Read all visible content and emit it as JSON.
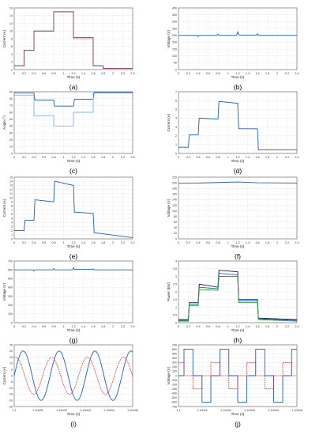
{
  "colors": {
    "blue": "#1f5fbf",
    "navy": "#0d1b4f",
    "red": "#e0251b",
    "green": "#2e9e2e",
    "grid": "#d0d0d0",
    "axis": "#555555"
  },
  "chart_data": [
    {
      "id": "a",
      "type": "line",
      "caption": "(a)",
      "xlabel": "Time (s)",
      "ylabel": "Current (A)",
      "xlim": [
        0,
        2.4
      ],
      "ylim": [
        0,
        16
      ],
      "grid": true,
      "xticks": [
        "0",
        "0.2",
        "0.4",
        "0.6",
        "0.8",
        "1",
        "1.2",
        "1.4",
        "1.6",
        "1.8",
        "2",
        "2.2",
        "2.4"
      ],
      "yticks": [
        "0",
        "2",
        "4",
        "6",
        "8",
        "10",
        "12",
        "14",
        "16"
      ],
      "series": [
        {
          "color": "blue",
          "x": [
            0,
            0.2,
            0.2,
            0.4,
            0.4,
            0.8,
            0.8,
            1.2,
            1.2,
            1.6,
            1.6,
            1.8,
            1.8,
            2.4
          ],
          "y": [
            1,
            1,
            5,
            5,
            10,
            10,
            15,
            15,
            8.3,
            8.3,
            1,
            1,
            0.3,
            0.3
          ]
        },
        {
          "color": "red",
          "dashed": true,
          "x": [
            0,
            0.2,
            0.2,
            0.4,
            0.4,
            0.8,
            0.8,
            1.2,
            1.2,
            1.6,
            1.6,
            1.8,
            1.8,
            2.4
          ],
          "y": [
            1,
            1,
            5,
            5,
            10,
            10,
            15,
            15,
            8,
            8,
            1,
            1,
            0.3,
            0.3
          ]
        }
      ]
    },
    {
      "id": "b",
      "type": "line",
      "caption": "(b)",
      "xlabel": "Time (s)",
      "ylabel": "Voltage (V)",
      "xlim": [
        0,
        2.4
      ],
      "ylim": [
        0,
        450
      ],
      "grid": true,
      "xticks": [
        "0",
        "0.2",
        "0.4",
        "0.6",
        "0.8",
        "1",
        "1.2",
        "1.4",
        "1.6",
        "1.8",
        "2",
        "2.2",
        "2.4"
      ],
      "yticks": [
        "0",
        "50",
        "100",
        "150",
        "200",
        "250",
        "300",
        "350",
        "400",
        "450"
      ],
      "series": [
        {
          "color": "blue",
          "x": [
            0,
            0.38,
            0.4,
            0.42,
            0.78,
            0.8,
            0.82,
            1.18,
            1.2,
            1.23,
            1.58,
            1.6,
            1.62,
            2.4
          ],
          "y": [
            250,
            250,
            240,
            250,
            250,
            258,
            250,
            250,
            275,
            252,
            252,
            262,
            250,
            250
          ]
        }
      ]
    },
    {
      "id": "c",
      "type": "line",
      "caption": "(c)",
      "xlabel": "Time (s)",
      "ylabel": "Angle (°)",
      "xlim": [
        0,
        2.4
      ],
      "ylim": [
        0,
        90
      ],
      "grid": true,
      "xticks": [
        "0",
        "0.2",
        "0.4",
        "0.6",
        "0.8",
        "1",
        "1.2",
        "1.4",
        "1.6",
        "1.8",
        "2",
        "2.2",
        "2.4"
      ],
      "yticks": [
        "0",
        "10",
        "20",
        "30",
        "40",
        "50",
        "60",
        "70",
        "80",
        "90"
      ],
      "series": [
        {
          "color": "blue",
          "x": [
            0,
            0.4,
            0.42,
            0.8,
            0.82,
            1.2,
            1.22,
            1.6,
            1.62,
            2.4
          ],
          "y": [
            88,
            88,
            78,
            78,
            69,
            69,
            79,
            79,
            89,
            89
          ]
        },
        {
          "color": "lightblue",
          "x": [
            0,
            0.4,
            0.4,
            0.8,
            0.8,
            1.2,
            1.2,
            1.6,
            1.6,
            2.4
          ],
          "y": [
            85,
            85,
            55,
            55,
            40,
            40,
            60,
            60,
            88,
            88
          ]
        }
      ]
    },
    {
      "id": "d",
      "type": "line",
      "caption": "(d)",
      "xlabel": "Time (s)",
      "ylabel": "Current (A)",
      "xlim": [
        0,
        2.4
      ],
      "ylim": [
        0,
        7
      ],
      "grid": true,
      "xticks": [
        "0",
        "0.2",
        "0.4",
        "0.6",
        "0.8",
        "1",
        "1.2",
        "1.4",
        "1.6",
        "1.8",
        "2",
        "2.2",
        "2.4"
      ],
      "yticks": [
        "0",
        "1",
        "2",
        "3",
        "4",
        "5",
        "6",
        "7"
      ],
      "series": [
        {
          "color": "blue",
          "x": [
            0,
            0.2,
            0.22,
            0.4,
            0.42,
            0.8,
            0.82,
            1.2,
            1.22,
            1.6,
            1.62,
            2.4
          ],
          "y": [
            0.7,
            0.7,
            2.1,
            2.1,
            4,
            3.9,
            5.9,
            5.7,
            2.8,
            2.8,
            0.4,
            0.4
          ]
        }
      ]
    },
    {
      "id": "e",
      "type": "line",
      "caption": "(e)",
      "xlabel": "Time (s)",
      "ylabel": "Current (A)",
      "xlim": [
        0,
        2.4
      ],
      "ylim": [
        0,
        15
      ],
      "grid": true,
      "xticks": [
        "0",
        "0.2",
        "0.4",
        "0.6",
        "0.8",
        "1",
        "1.2",
        "1.4",
        "1.6",
        "1.8",
        "2",
        "2.2",
        "2.4"
      ],
      "yticks": [
        "0",
        "1",
        "2",
        "3",
        "4",
        "5",
        "6",
        "7",
        "8",
        "9",
        "10",
        "11",
        "12",
        "13",
        "14",
        "15"
      ],
      "series": [
        {
          "color": "blue",
          "x": [
            0,
            0.2,
            0.22,
            0.4,
            0.42,
            0.8,
            0.82,
            1.2,
            1.22,
            1.6,
            1.62,
            2.4
          ],
          "y": [
            2,
            2,
            4.5,
            4.5,
            9.5,
            9,
            14,
            13,
            6.5,
            6.2,
            1.5,
            0.3
          ]
        }
      ]
    },
    {
      "id": "f",
      "type": "line",
      "caption": "(f)",
      "xlabel": "Time (s)",
      "ylabel": "Voltage (V)",
      "xlim": [
        0,
        2.4
      ],
      "ylim": [
        0,
        220
      ],
      "grid": true,
      "xticks": [
        "0",
        "0.2",
        "0.4",
        "0.6",
        "0.8",
        "1",
        "1.2",
        "1.4",
        "1.6",
        "1.8",
        "2",
        "2.2",
        "2.4"
      ],
      "yticks": [
        "0",
        "20",
        "40",
        "60",
        "80",
        "100",
        "120",
        "140",
        "160",
        "180",
        "200",
        "220"
      ],
      "series": [
        {
          "color": "blue",
          "x": [
            0,
            0.4,
            0.8,
            1.2,
            1.6,
            2.4
          ],
          "y": [
            198,
            199,
            201,
            203,
            200,
            199
          ]
        }
      ]
    },
    {
      "id": "g",
      "type": "line",
      "caption": "(g)",
      "xlabel": "Time (s)",
      "ylabel": "Voltage (V)",
      "xlim": [
        0,
        2.4
      ],
      "ylim": [
        0,
        700
      ],
      "grid": true,
      "xticks": [
        "0",
        "0.2",
        "0.4",
        "0.6",
        "0.8",
        "1",
        "1.2",
        "1.4",
        "1.6",
        "1.8",
        "2",
        "2.2",
        "2.4"
      ],
      "yticks": [
        "0",
        "100",
        "200",
        "300",
        "400",
        "500",
        "600",
        "700"
      ],
      "series": [
        {
          "color": "blue",
          "x": [
            0,
            0.38,
            0.4,
            0.42,
            0.78,
            0.8,
            0.82,
            1.18,
            1.2,
            1.22,
            1.58,
            1.6,
            1.62,
            2.4
          ],
          "y": [
            600,
            600,
            585,
            600,
            600,
            615,
            600,
            600,
            625,
            605,
            605,
            612,
            600,
            600
          ]
        }
      ]
    },
    {
      "id": "h",
      "type": "line",
      "caption": "(h)",
      "xlabel": "Time (s)",
      "ylabel": "Power (kW)",
      "xlim": [
        0,
        2.4
      ],
      "ylim": [
        0,
        4
      ],
      "grid": true,
      "xticks": [
        "0",
        "0.2",
        "0.4",
        "0.6",
        "0.8",
        "1",
        "1.2",
        "1.4",
        "1.6",
        "1.8",
        "2",
        "2.2",
        "2.4"
      ],
      "yticks": [
        "0",
        "0.5",
        "1",
        "1.5",
        "2",
        "2.5",
        "3",
        "3.5",
        "4"
      ],
      "series": [
        {
          "color": "navy",
          "x": [
            0,
            0.2,
            0.22,
            0.4,
            0.42,
            0.8,
            0.82,
            1.2,
            1.22,
            1.6,
            1.62,
            2.4
          ],
          "y": [
            0.2,
            0.2,
            1.3,
            1.3,
            2.5,
            2.3,
            3.4,
            3.3,
            1.5,
            1.5,
            0.3,
            0.2
          ]
        },
        {
          "color": "blue",
          "x": [
            0,
            0.2,
            0.22,
            0.4,
            0.42,
            0.8,
            0.82,
            1.2,
            1.22,
            1.6,
            1.62,
            2.4
          ],
          "y": [
            0.15,
            0.15,
            1.2,
            1.2,
            2.3,
            2.2,
            3.2,
            3.1,
            1.4,
            1.4,
            0.25,
            0.15
          ]
        },
        {
          "color": "green",
          "x": [
            0,
            0.2,
            0.22,
            0.4,
            0.42,
            0.8,
            0.82,
            1.2,
            1.22,
            1.6,
            1.62,
            2.4
          ],
          "y": [
            0.1,
            0.1,
            1.1,
            1.1,
            2.15,
            2.1,
            3,
            3,
            1.3,
            1.3,
            0.2,
            0.1
          ]
        }
      ]
    },
    {
      "id": "i",
      "type": "line",
      "caption": "(i)",
      "xlabel": "Time (s)",
      "ylabel": "Current (A)",
      "xlim": [
        1.1,
        1.10005
      ],
      "ylim": [
        -25,
        25
      ],
      "grid": true,
      "xticks": [
        "1.1",
        "1.10001",
        "1.10002",
        "1.10003",
        "1.10004",
        "1.10005"
      ],
      "yticks": [
        "-25",
        "-20",
        "-15",
        "-10",
        "-5",
        "0",
        "5",
        "10",
        "15",
        "20",
        "25"
      ],
      "series": [
        {
          "color": "blue",
          "wave": "sine",
          "amp": 20,
          "cycles": 3.3,
          "phase": 0.0
        },
        {
          "color": "red",
          "dashed": true,
          "wave": "sine",
          "amp": 15,
          "cycles": 3.3,
          "phase": 1.3
        }
      ]
    },
    {
      "id": "j",
      "type": "line",
      "caption": "(j)",
      "xlabel": "Time (s)",
      "ylabel": "Voltage (V)",
      "xlim": [
        1.1,
        1.10005
      ],
      "ylim": [
        -700,
        700
      ],
      "grid": true,
      "xticks": [
        "1.1",
        "1.10001",
        "1.10002",
        "1.10003",
        "1.10004",
        "1.10005"
      ],
      "yticks": [
        "-700",
        "-600",
        "-500",
        "-400",
        "-300",
        "-200",
        "-100",
        "0",
        "100",
        "200",
        "300",
        "400",
        "500",
        "600",
        "700"
      ],
      "series": [
        {
          "color": "blue",
          "wave": "steps",
          "levels": [
            0,
            600,
            0,
            -600
          ],
          "cycles": 3.3,
          "phase": 0.1
        },
        {
          "color": "red",
          "dashed": true,
          "wave": "steps",
          "levels": [
            0,
            300,
            0,
            -300
          ],
          "cycles": 3.3,
          "phase": 0.35
        }
      ]
    }
  ]
}
